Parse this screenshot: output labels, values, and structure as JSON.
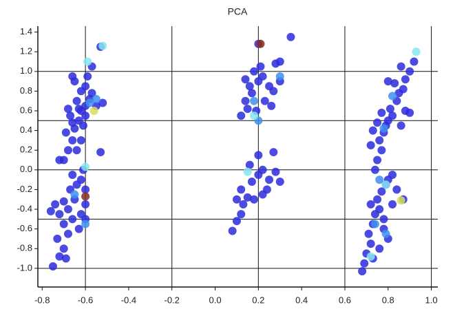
{
  "chart_data": {
    "type": "scatter",
    "title": "PCA",
    "xlim": [
      -0.82,
      1.03
    ],
    "ylim": [
      -1.19,
      1.46
    ],
    "xticks": [
      -0.8,
      -0.6,
      -0.4,
      -0.2,
      {
        "value": 0,
        "label": "0.0"
      },
      0.2,
      0.4,
      0.6,
      0.8,
      {
        "value": 1,
        "label": "1.0"
      }
    ],
    "yticks": [
      1.4,
      1.2,
      {
        "value": 1,
        "label": "1.0"
      },
      0.8,
      0.6,
      0.4,
      0.2,
      {
        "value": 0,
        "label": "0.0"
      },
      -0.2,
      -0.4,
      -0.6,
      -0.8,
      {
        "value": -1,
        "label": "-1.0"
      }
    ],
    "xgrid": [
      -0.6,
      -0.2,
      0.2,
      0.6,
      1.0
    ],
    "ygrid": [
      1.0,
      0.5,
      0.0,
      -0.5,
      -1.0
    ],
    "series": [
      {
        "color": "#2b2bdc",
        "x": [
          -0.7,
          -0.68,
          -0.66,
          -0.69,
          -0.65,
          -0.63,
          -0.67,
          -0.62,
          -0.6,
          -0.64,
          -0.58,
          -0.62,
          -0.6,
          -0.65,
          -0.63,
          -0.61,
          -0.66,
          -0.57,
          -0.55,
          -0.52,
          -0.53,
          -0.57,
          -0.59,
          -0.66,
          -0.62,
          -0.64,
          -0.53,
          -0.72,
          -0.68,
          -0.6,
          -0.75,
          -0.72,
          -0.7,
          -0.73,
          -0.68,
          -0.7,
          -0.72,
          -0.66,
          -0.68,
          -0.7,
          -0.65,
          -0.67,
          -0.64,
          -0.62,
          -0.66,
          -0.6,
          -0.62,
          -0.6,
          -0.74,
          -0.76,
          -0.69,
          -0.63,
          -0.6,
          -0.61,
          0.12,
          0.15,
          0.14,
          0.17,
          0.16,
          0.2,
          0.22,
          0.18,
          0.25,
          0.27,
          0.3,
          0.28,
          0.3,
          0.35,
          0.2,
          0.23,
          0.19,
          0.26,
          0.14,
          0.21,
          0.08,
          0.1,
          0.12,
          0.13,
          0.15,
          0.12,
          0.17,
          0.2,
          0.22,
          0.25,
          0.28,
          0.3,
          0.18,
          0.22,
          0.2,
          0.27,
          0.16,
          0.24,
          0.1,
          0.74,
          0.75,
          0.77,
          0.76,
          0.78,
          0.79,
          0.8,
          0.82,
          0.81,
          0.84,
          0.85,
          0.87,
          0.83,
          0.8,
          0.88,
          0.9,
          0.92,
          0.9,
          0.86,
          0.73,
          0.75,
          0.77,
          0.72,
          0.86,
          0.88,
          0.68,
          0.69,
          0.7,
          0.72,
          0.71,
          0.73,
          0.74,
          0.76,
          0.75,
          0.77,
          0.79,
          0.8,
          0.82,
          0.84,
          0.78,
          0.8,
          0.76,
          0.73,
          0.82,
          0.87,
          0.78,
          0.72
        ],
        "values": [
          0.1,
          0.2,
          0.3,
          0.38,
          0.42,
          0.5,
          0.55,
          0.6,
          0.65,
          0.7,
          0.72,
          0.8,
          0.85,
          0.9,
          0.62,
          0.45,
          0.48,
          0.78,
          0.65,
          0.68,
          1.25,
          1.05,
          0.95,
          0.95,
          0.3,
          0.2,
          0.18,
          0.1,
          0.62,
          0.55,
          -0.98,
          -0.88,
          -0.8,
          -0.7,
          -0.65,
          -0.55,
          -0.45,
          -0.5,
          -0.4,
          -0.32,
          -0.3,
          -0.2,
          -0.15,
          -0.1,
          -0.05,
          -0.35,
          -0.45,
          -0.5,
          -0.35,
          -0.42,
          -0.9,
          -0.6,
          -0.2,
          0.0,
          0.55,
          0.62,
          0.7,
          0.78,
          0.85,
          0.9,
          0.95,
          1.0,
          0.85,
          0.8,
          0.9,
          1.08,
          1.1,
          1.35,
          1.28,
          0.7,
          0.6,
          0.65,
          0.92,
          1.05,
          -0.62,
          -0.52,
          -0.45,
          -0.35,
          -0.28,
          -0.2,
          -0.12,
          -0.05,
          0.0,
          -0.1,
          -0.02,
          -0.12,
          -0.3,
          -0.25,
          0.15,
          0.18,
          0.05,
          -0.2,
          -0.3,
          0.0,
          0.1,
          0.2,
          0.3,
          0.38,
          0.45,
          0.5,
          0.55,
          0.62,
          0.7,
          0.78,
          0.82,
          0.88,
          0.9,
          0.6,
          0.58,
          1.1,
          1.0,
          1.05,
          0.4,
          0.48,
          0.58,
          0.25,
          0.45,
          0.92,
          -1.03,
          -0.95,
          -0.85,
          -0.75,
          -0.65,
          -0.55,
          -0.45,
          -0.4,
          -0.3,
          -0.22,
          -0.15,
          -0.1,
          -0.05,
          -0.2,
          -0.6,
          -0.7,
          -0.8,
          -0.9,
          -0.35,
          -0.3,
          -0.5,
          -0.35
        ]
      },
      {
        "color": "#3f8ff0",
        "x": [
          -0.58,
          -0.55,
          -0.65,
          -0.6,
          0.18,
          0.2,
          0.3,
          0.82,
          0.78,
          0.74,
          0.76,
          0.79
        ],
        "values": [
          0.68,
          0.72,
          -0.25,
          -0.55,
          0.7,
          0.5,
          0.95,
          0.75,
          0.42,
          -0.55,
          -0.1,
          -0.65
        ]
      },
      {
        "color": "#86e6ee",
        "x": [
          -0.52,
          -0.59,
          -0.6,
          0.15,
          0.18,
          0.93,
          0.72,
          0.79
        ],
        "values": [
          1.26,
          1.1,
          0.03,
          -0.02,
          0.55,
          1.2,
          -0.88,
          -0.15
        ]
      },
      {
        "color": "#d6de5a",
        "x": [
          -0.56,
          0.86
        ],
        "values": [
          0.6,
          -0.31
        ]
      },
      {
        "color": "#8a2a1e",
        "x": [
          -0.6,
          0.21
        ],
        "values": [
          -0.27,
          1.28
        ]
      }
    ]
  }
}
